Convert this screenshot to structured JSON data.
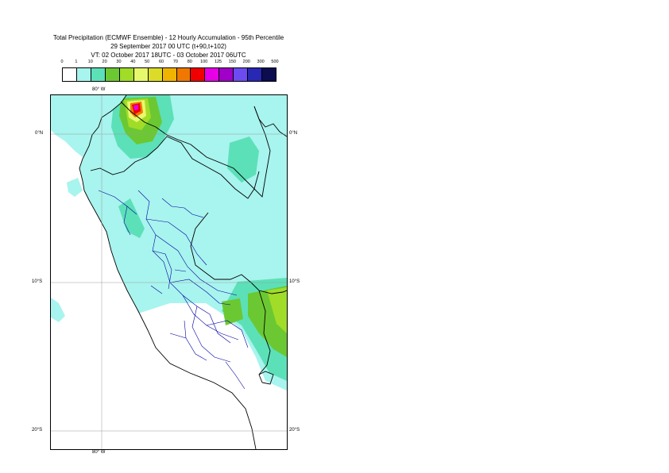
{
  "title": {
    "line1": "Total Precipitation (ECMWF Ensemble) - 12 Hourly Accumulation - 95th Percentile",
    "line2": "29 September 2017 00 UTC (t+90,t+102)",
    "line3": "VT: 02 October 2017 18UTC - 03 October 2017 06UTC"
  },
  "legend": {
    "ticks": [
      "0",
      "1",
      "10",
      "20",
      "30",
      "40",
      "50",
      "60",
      "70",
      "80",
      "100",
      "125",
      "150",
      "200",
      "300",
      "500"
    ],
    "colors": [
      "#ffffff",
      "#a8f4ee",
      "#5ce0b8",
      "#6cc832",
      "#a0dc28",
      "#e8f86c",
      "#dcdc28",
      "#f0b400",
      "#f07800",
      "#f00000",
      "#e600e6",
      "#a000c8",
      "#6c4cf0",
      "#2828b4",
      "#0c0c50"
    ]
  },
  "map": {
    "graticule_labels": {
      "top_lon": "80° W",
      "bottom_lon": "80° W",
      "lat_left": [
        "0°N",
        "10°S",
        "20°S"
      ],
      "lat_right": [
        "0°N",
        "10°S",
        "20°S"
      ]
    },
    "colors": {
      "sea_light": "#a8f4ee",
      "moderate": "#5ce0b8",
      "heavy": "#6cc832",
      "yellow_green": "#a0dc28",
      "pale_yellow": "#e8f86c",
      "orange": "#f07800",
      "red": "#f00000",
      "magenta": "#e600e6",
      "border": "#000000",
      "admin_border": "#0000a0"
    }
  }
}
